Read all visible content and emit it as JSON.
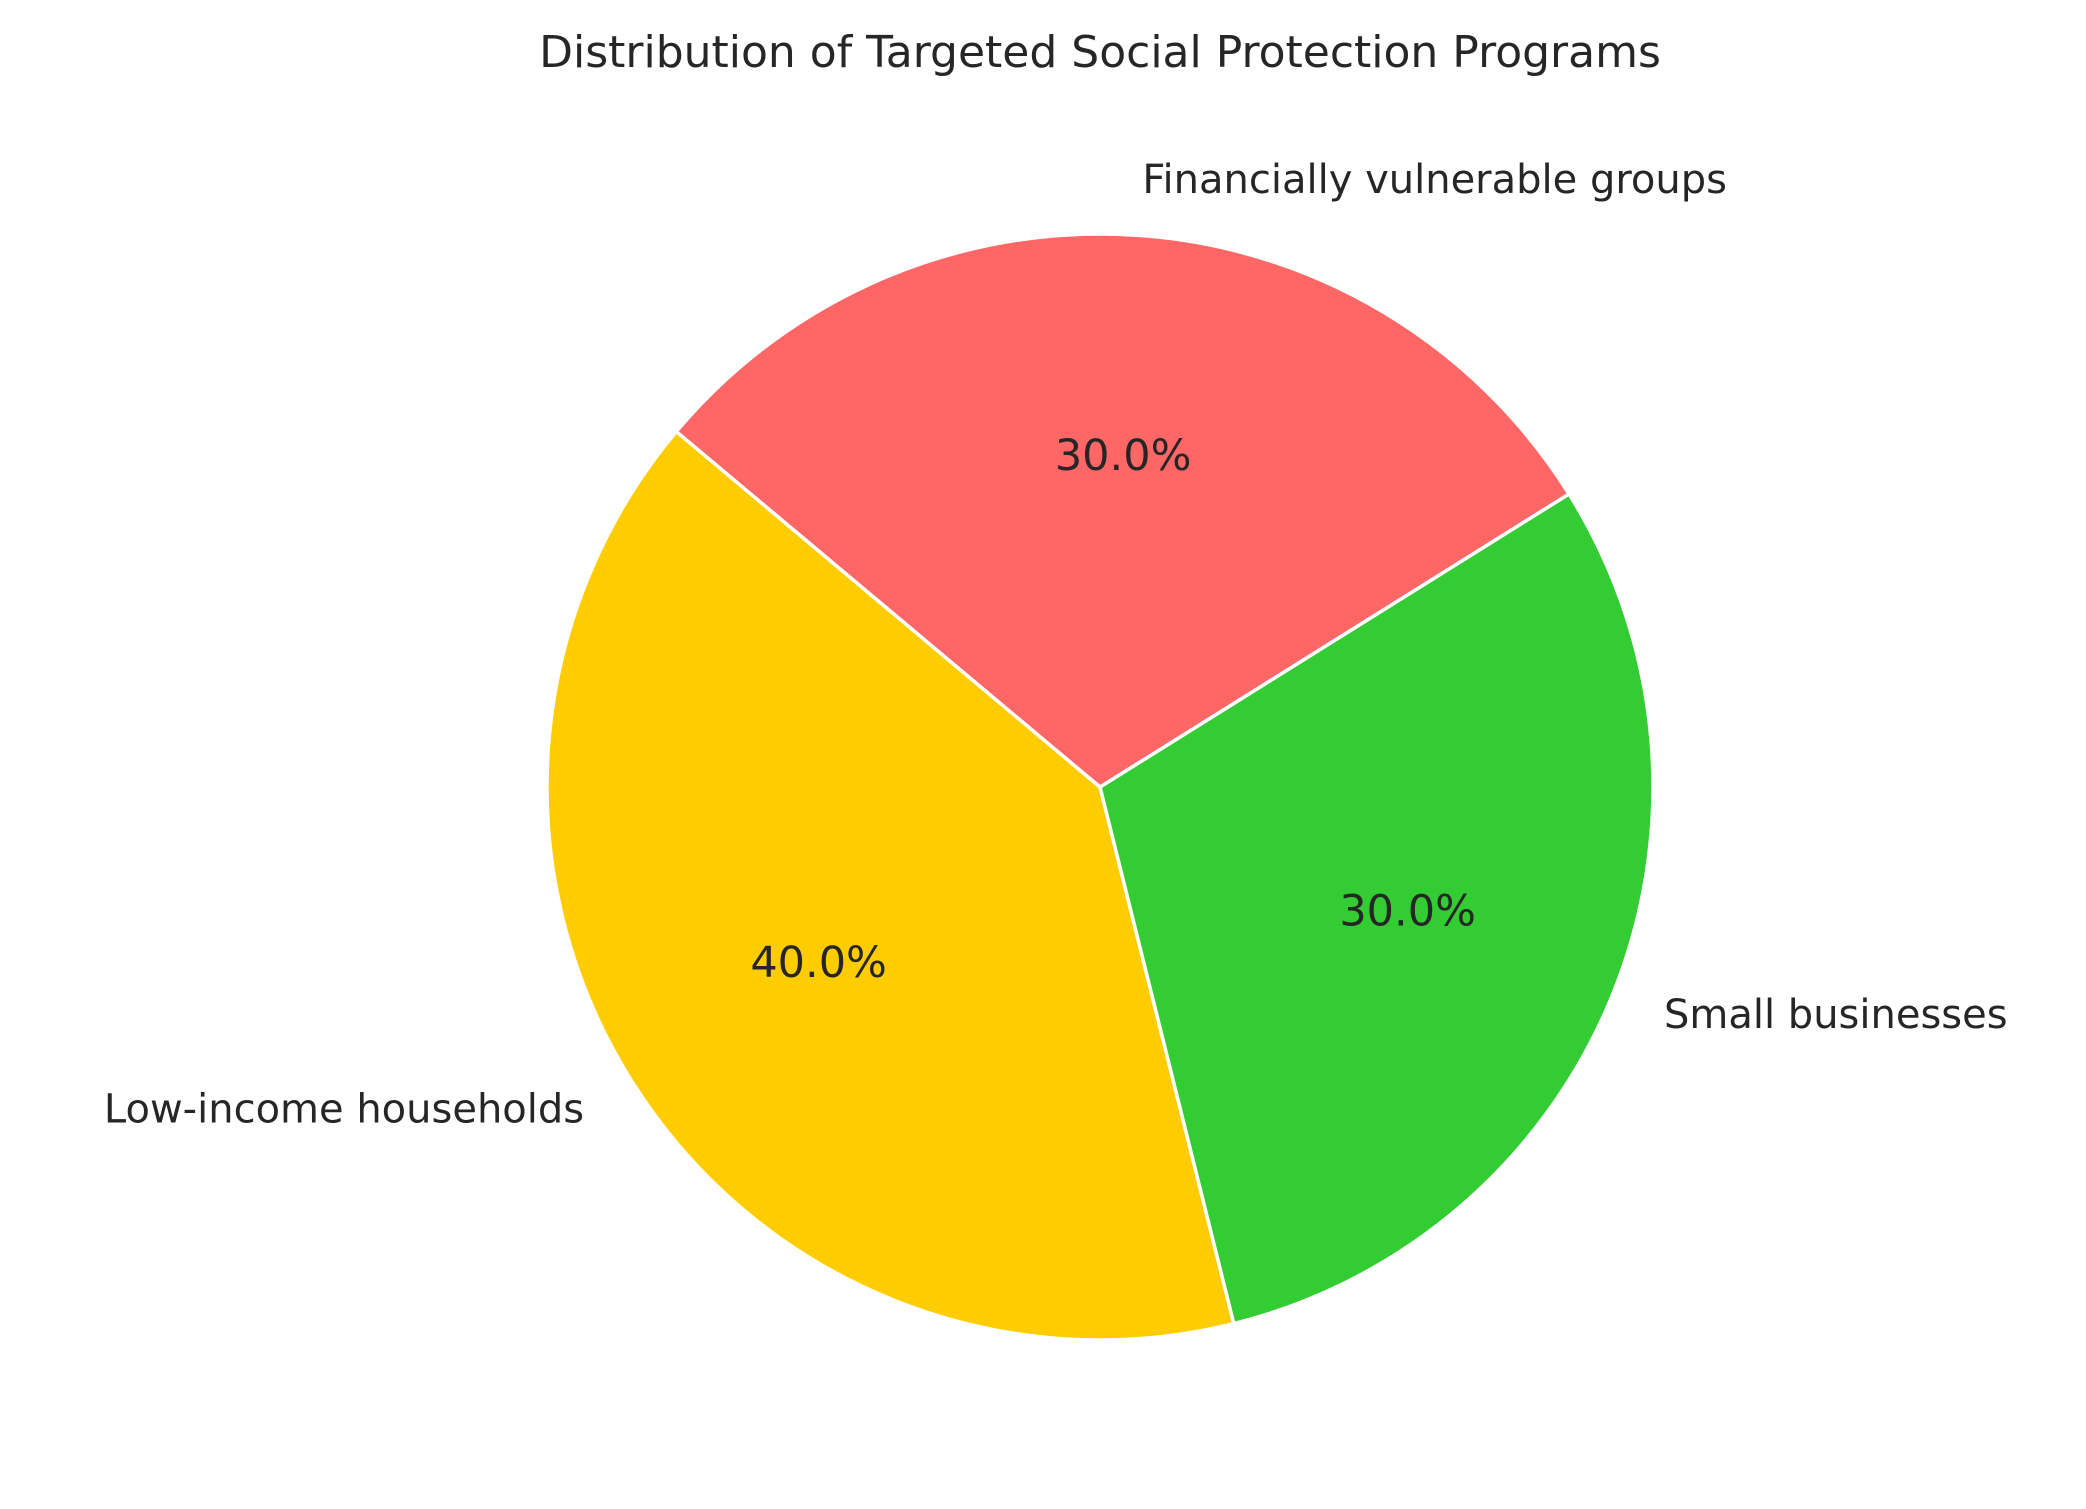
{
  "chart_data": {
    "type": "pie",
    "title": "Distribution of Targeted Social Protection Programs",
    "start_angle_deg": 140,
    "direction": "counterclockwise",
    "slices": [
      {
        "label": "Low-income households",
        "value": 40,
        "pct_label": "40.0%",
        "color": "#ffcc00"
      },
      {
        "label": "Small businesses",
        "value": 30,
        "pct_label": "30.0%",
        "color": "#33cc33"
      },
      {
        "label": "Financially vulnerable groups",
        "value": 30,
        "pct_label": "30.0%",
        "color": "#ff6666"
      }
    ]
  }
}
